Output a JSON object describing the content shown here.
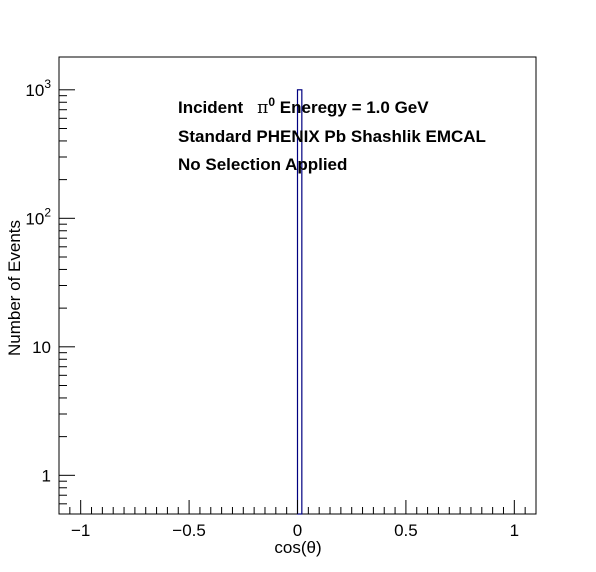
{
  "chart_data": {
    "type": "bar",
    "histogram": true,
    "xlabel": "cos(θ)",
    "ylabel": "Number of Events",
    "xlim": [
      -1.1,
      1.1
    ],
    "ylim": [
      0.5,
      1800
    ],
    "yscale": "log",
    "grid": false,
    "x_ticks": [
      "−1",
      "−0.5",
      "0",
      "0.5",
      "1"
    ],
    "y_ticks": [
      {
        "base": "1",
        "exp": ""
      },
      {
        "base": "10",
        "exp": ""
      },
      {
        "base": "10",
        "exp": "2"
      },
      {
        "base": "10",
        "exp": "3"
      }
    ],
    "bins": [
      {
        "x0": 0.0,
        "x1": 0.02,
        "value": 1000
      }
    ],
    "bar_color": "#000080",
    "annotations": [
      {
        "prefix": "Incident",
        "symbol": "π",
        "sup": "0",
        "suffix": " Eneregy = 1.0 GeV"
      },
      {
        "text": "Standard PHENIX Pb Shashlik EMCAL"
      },
      {
        "text": "No Selection Applied"
      }
    ]
  }
}
